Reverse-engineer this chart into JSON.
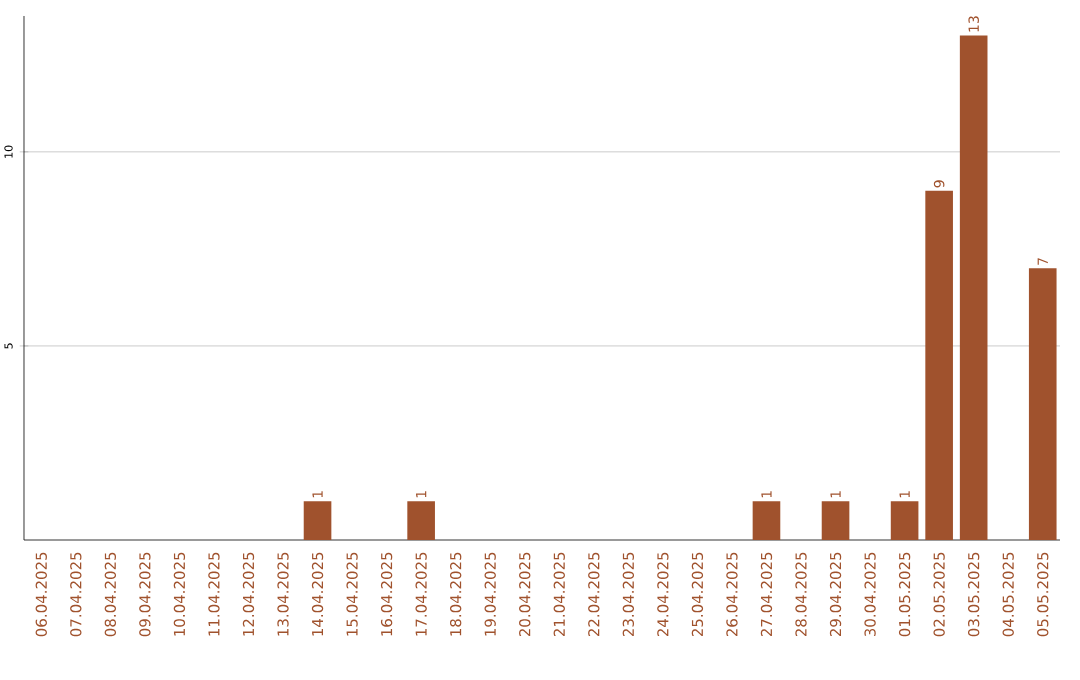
{
  "chart_data": {
    "type": "bar",
    "categories": [
      "06.04.2025",
      "07.04.2025",
      "08.04.2025",
      "09.04.2025",
      "10.04.2025",
      "11.04.2025",
      "12.04.2025",
      "13.04.2025",
      "14.04.2025",
      "15.04.2025",
      "16.04.2025",
      "17.04.2025",
      "18.04.2025",
      "19.04.2025",
      "20.04.2025",
      "21.04.2025",
      "22.04.2025",
      "23.04.2025",
      "24.04.2025",
      "25.04.2025",
      "26.04.2025",
      "27.04.2025",
      "28.04.2025",
      "29.04.2025",
      "30.04.2025",
      "01.05.2025",
      "02.05.2025",
      "03.05.2025",
      "04.05.2025",
      "05.05.2025"
    ],
    "values": [
      0,
      0,
      0,
      0,
      0,
      0,
      0,
      0,
      1,
      0,
      0,
      1,
      0,
      0,
      0,
      0,
      0,
      0,
      0,
      0,
      0,
      1,
      0,
      1,
      0,
      1,
      9,
      13,
      0,
      7
    ],
    "value_labels": [
      null,
      null,
      null,
      null,
      null,
      null,
      null,
      null,
      "1",
      null,
      null,
      "1",
      null,
      null,
      null,
      null,
      null,
      null,
      null,
      null,
      null,
      "1",
      null,
      "1",
      null,
      "1",
      "9",
      "13",
      null,
      "7"
    ],
    "color": "#a0522d",
    "ylim": [
      0,
      13.5
    ],
    "yticks": [
      5,
      10
    ],
    "grid": "y"
  }
}
